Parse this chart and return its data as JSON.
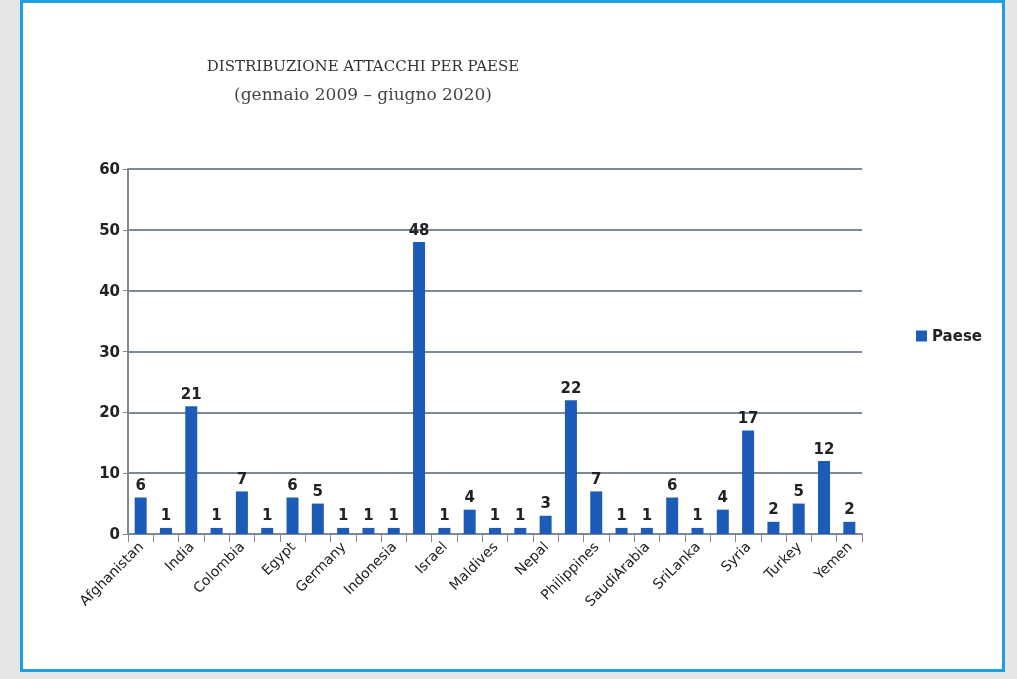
{
  "chart_data": {
    "type": "bar",
    "title": "DISTRIBUZIONE ATTACCHI PER PAESE",
    "subtitle": "(gennaio 2009 – giugno 2020)",
    "categories": [
      "Afghanistan",
      null,
      "India",
      null,
      "Colombia",
      null,
      "Egypt",
      null,
      "Germany",
      null,
      "Indonesia",
      null,
      "Israel",
      null,
      "Maldives",
      null,
      "Nepal",
      null,
      "Philippines",
      null,
      "SaudiArabia",
      null,
      "SriLanka",
      null,
      "Syria",
      null,
      "Turkey",
      null,
      "Yemen"
    ],
    "series": [
      {
        "name": "Paese",
        "color": "#1c5cb8",
        "values": [
          6,
          1,
          21,
          1,
          7,
          1,
          6,
          5,
          1,
          1,
          1,
          48,
          1,
          4,
          1,
          1,
          3,
          22,
          7,
          1,
          1,
          6,
          1,
          4,
          17,
          2,
          5,
          12,
          2
        ]
      }
    ],
    "ylim": [
      0,
      60
    ],
    "yticks": [
      0,
      10,
      20,
      30,
      40,
      50,
      60
    ],
    "grid": "y",
    "legend": "right",
    "data_labels": true
  }
}
